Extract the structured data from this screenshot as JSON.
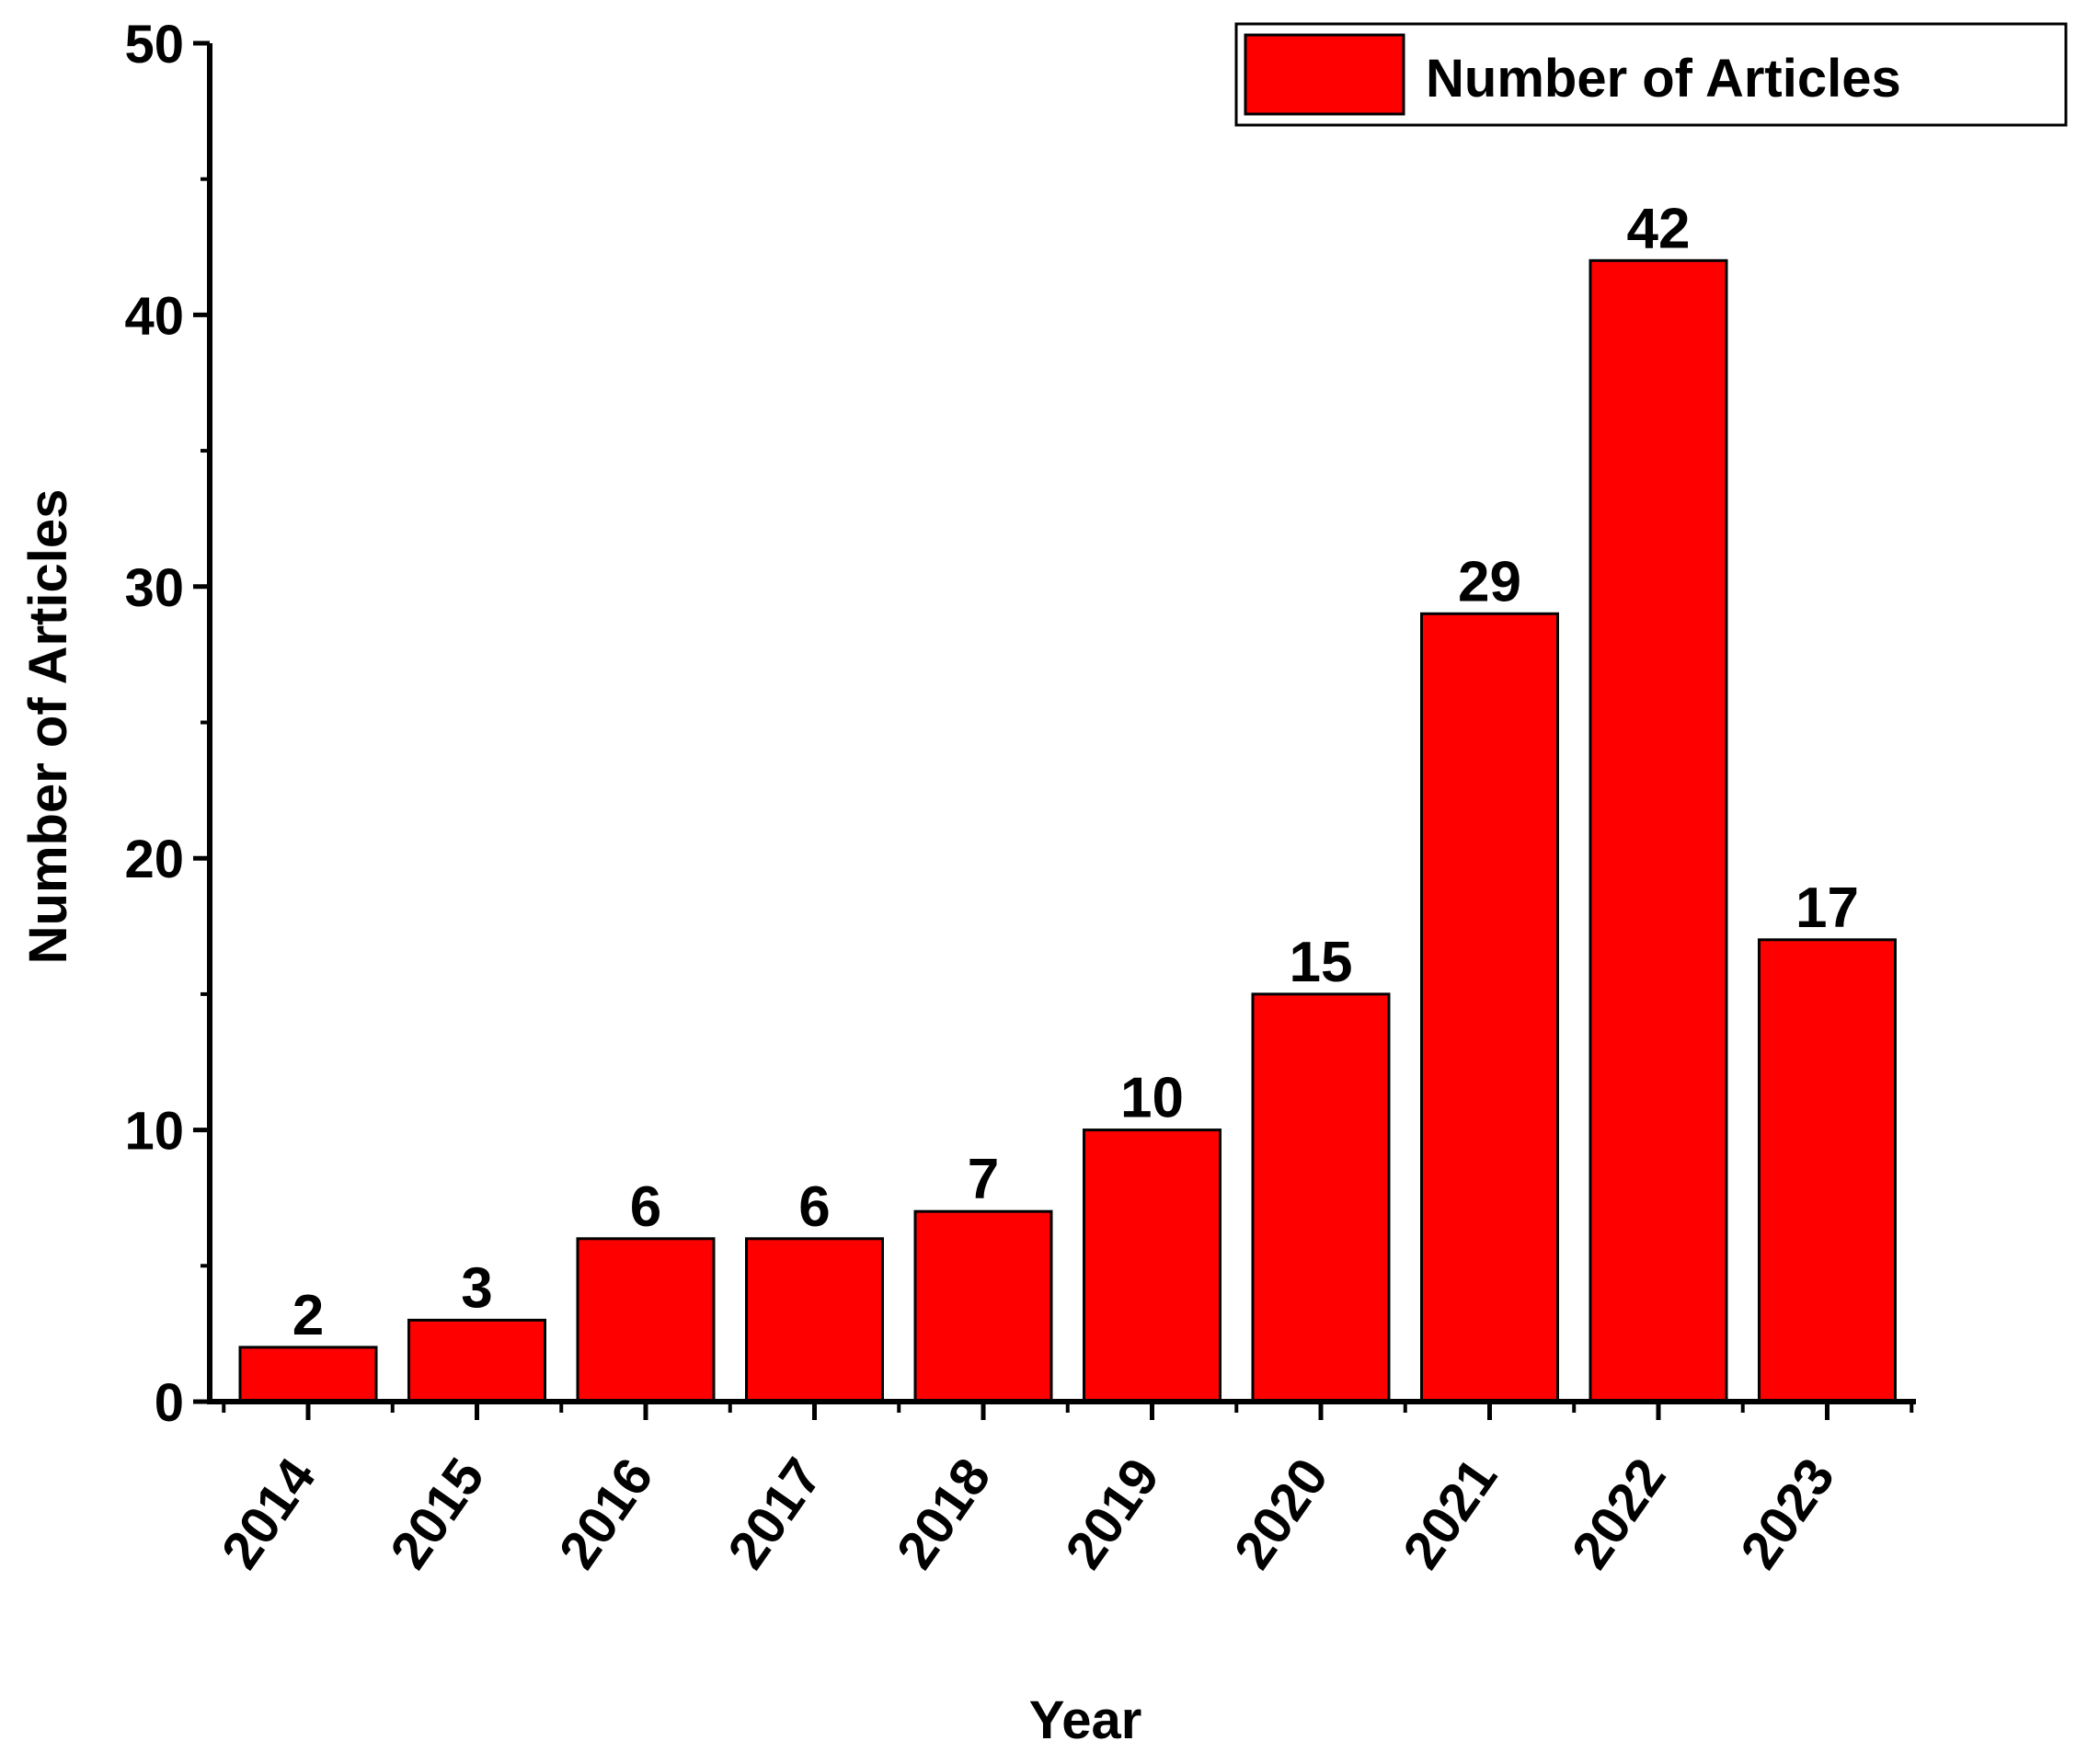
{
  "chart_data": {
    "type": "bar",
    "title": "",
    "xlabel": "Year",
    "ylabel": "Number of Articles",
    "categories": [
      "2014",
      "2015",
      "2016",
      "2017",
      "2018",
      "2019",
      "2020",
      "2021",
      "2022",
      "2023"
    ],
    "series": [
      {
        "name": "Number of Articles",
        "values": [
          2,
          3,
          6,
          6,
          7,
          10,
          15,
          29,
          42,
          17
        ],
        "color": "#ff0000"
      }
    ],
    "data_labels": [
      "2",
      "3",
      "6",
      "6",
      "7",
      "10",
      "15",
      "29",
      "42",
      "17"
    ],
    "ylim": [
      0,
      50
    ],
    "yticks": [
      0,
      10,
      20,
      30,
      40,
      50
    ],
    "ytick_labels": [
      "0",
      "10",
      "20",
      "30",
      "40",
      "50"
    ],
    "grid": false,
    "legend": {
      "position": "top-right",
      "label": "Number of Articles"
    }
  }
}
